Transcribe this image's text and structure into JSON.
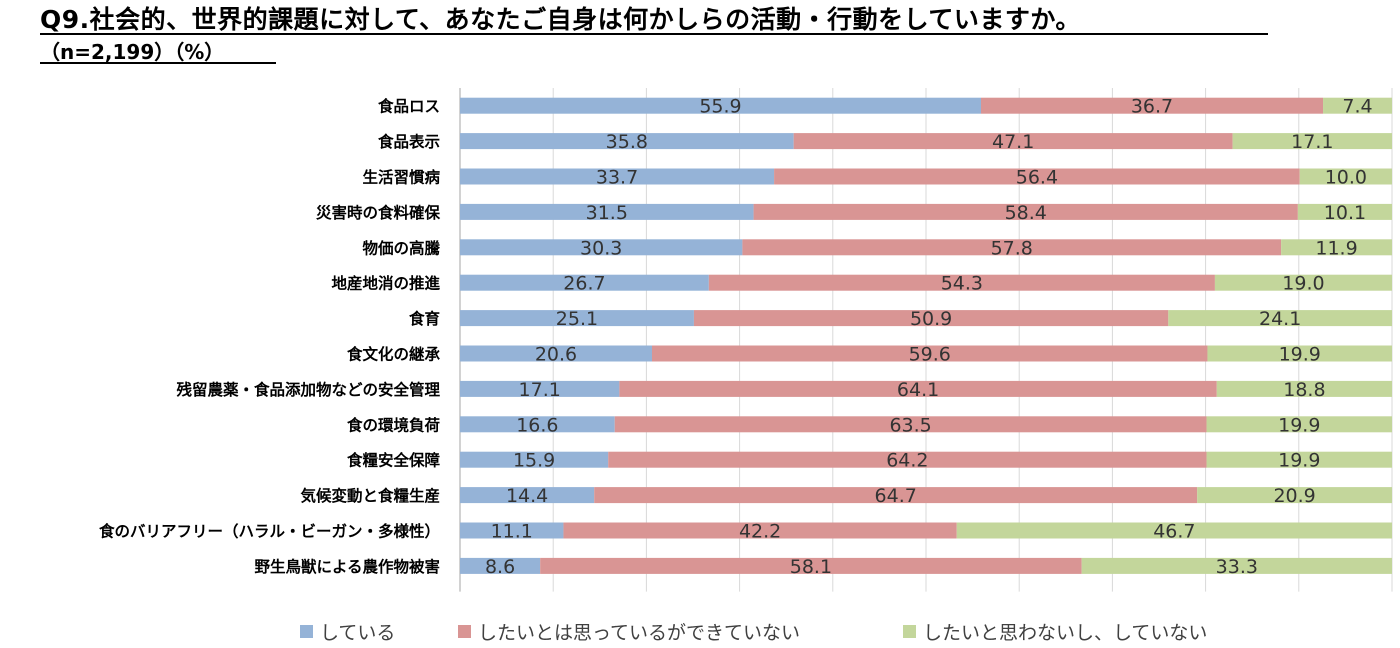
{
  "header": {
    "title": "Q9.社会的、世界的課題に対して、あなたご自身は何かしらの活動・行動をしていますか。",
    "subtitle": "（n=2,199）（%）"
  },
  "colors": {
    "doing": "#95b3d7",
    "want_but_cannot": "#d99594",
    "not_doing": "#c3d69b",
    "grid": "#d9d9d9",
    "axis": "#a6a6a6"
  },
  "chart_data": {
    "type": "bar",
    "orientation": "horizontal",
    "stacked": "100%",
    "title": "Q9.社会的、世界的課題に対して、あなたご自身は何かしらの活動・行動をしていますか。",
    "xlim": [
      0,
      100
    ],
    "grid": true,
    "legend_position": "bottom",
    "categories": [
      "食品ロス",
      "食品表示",
      "生活習慣病",
      "災害時の食料確保",
      "物価の高騰",
      "地産地消の推進",
      "食育",
      "食文化の継承",
      "残留農薬・食品添加物などの安全管理",
      "食の環境負荷",
      "食糧安全保障",
      "気候変動と食糧生産",
      "食のバリアフリー（ハラル・ビーガン・多様性）",
      "野生鳥獣による農作物被害"
    ],
    "series": [
      {
        "name": "している",
        "values": [
          55.9,
          35.8,
          33.7,
          31.5,
          30.3,
          26.7,
          25.1,
          20.6,
          17.1,
          16.6,
          15.9,
          14.4,
          11.1,
          8.6
        ],
        "labels": [
          "55.9",
          "35.8",
          "33.7",
          "31.5",
          "30.3",
          "26.7",
          "25.1",
          "20.6",
          "17.1",
          "16.6",
          "15.9",
          "14.4",
          "11.1",
          "8.6"
        ]
      },
      {
        "name": "したいとは思っているができていない",
        "values": [
          36.7,
          47.1,
          56.4,
          58.4,
          57.8,
          54.3,
          50.9,
          59.6,
          64.1,
          63.5,
          64.2,
          64.7,
          42.2,
          58.1
        ],
        "labels": [
          "36.7",
          "47.1",
          "56.4",
          "58.4",
          "57.8",
          "54.3",
          "50.9",
          "59.6",
          "64.1",
          "63.5",
          "64.2",
          "64.7",
          "42.2",
          "58.1"
        ]
      },
      {
        "name": "したいと思わないし、していない",
        "values": [
          7.4,
          17.1,
          10.0,
          10.1,
          11.9,
          19.0,
          24.1,
          19.9,
          18.8,
          19.9,
          19.9,
          20.9,
          46.7,
          33.3
        ],
        "labels": [
          "7.4",
          "17.1",
          "10.0",
          "10.1",
          "11.9",
          "19.0",
          "24.1",
          "19.9",
          "18.8",
          "19.9",
          "19.9",
          "20.9",
          "46.7",
          "33.3"
        ]
      }
    ]
  }
}
